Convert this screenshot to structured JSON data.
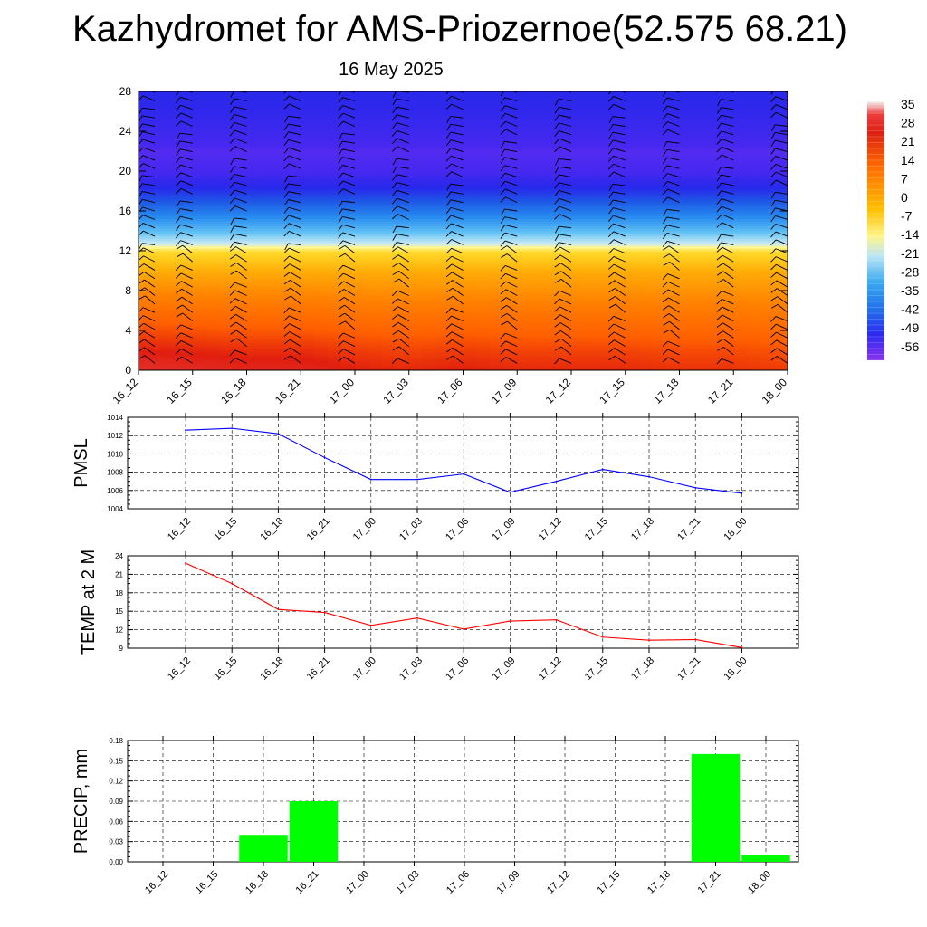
{
  "title": "Kazhydromet for AMS-Priozernoe(52.575 68.21)",
  "subtitle": "16 May 2025",
  "time_labels": [
    "16_12",
    "16_15",
    "16_18",
    "16_21",
    "17_00",
    "17_03",
    "17_06",
    "17_09",
    "17_12",
    "17_15",
    "17_18",
    "17_21",
    "18_00"
  ],
  "chart_data": [
    {
      "type": "heatmap",
      "title": "",
      "xlabel": "",
      "ylabel": "",
      "x": [
        "16_12",
        "16_15",
        "16_18",
        "16_21",
        "17_00",
        "17_03",
        "17_06",
        "17_09",
        "17_12",
        "17_15",
        "17_18",
        "17_21",
        "18_00"
      ],
      "y_ticks": [
        0,
        4,
        8,
        12,
        16,
        20,
        24,
        28
      ],
      "ylim": [
        0,
        28
      ],
      "y_tick_labels": [
        "0",
        "4",
        "8",
        "12",
        "16",
        "20",
        "24",
        "28"
      ],
      "colorbar": {
        "labels": [
          "35",
          "28",
          "21",
          "14",
          "7",
          "0",
          "-7",
          "-14",
          "-21",
          "-28",
          "-35",
          "-42",
          "-49",
          "-56"
        ],
        "range": [
          -60,
          36
        ]
      },
      "temperature_profile": {
        "levels_km": [
          0,
          2,
          4,
          6,
          8,
          10,
          12,
          12.5,
          13,
          14,
          16,
          18,
          20,
          22,
          24,
          26,
          28
        ],
        "values": [
          20,
          17,
          13,
          9,
          5,
          1,
          -8,
          -15,
          -18,
          -25,
          -35,
          -46,
          -55,
          -56,
          -53,
          -50,
          -48
        ]
      },
      "surface_warmth": [
        5,
        4,
        3,
        3,
        1,
        0,
        1,
        0,
        0,
        0,
        -1,
        -1,
        -2
      ],
      "wind_barbs": "present",
      "grid": false
    },
    {
      "type": "line",
      "ylabel": "PMSL",
      "x": [
        "16_12",
        "16_15",
        "16_18",
        "16_21",
        "17_00",
        "17_03",
        "17_06",
        "17_09",
        "17_12",
        "17_15",
        "17_18",
        "17_21",
        "18_00"
      ],
      "series": [
        {
          "values": [
            1012.6,
            1012.8,
            1012.2,
            1009.6,
            1007.2,
            1007.2,
            1007.8,
            1005.8,
            1007.0,
            1008.3,
            1007.5,
            1006.3,
            1005.7
          ],
          "color": "#0000ff"
        }
      ],
      "ylim": [
        1004,
        1014
      ],
      "yticks": [
        1004,
        1006,
        1008,
        1010,
        1012,
        1014
      ],
      "ytick_labels": [
        "1004",
        "1006",
        "1008",
        "1010",
        "1012",
        "1014"
      ],
      "grid": true
    },
    {
      "type": "line",
      "ylabel": "TEMP at 2 M",
      "x": [
        "16_12",
        "16_15",
        "16_18",
        "16_21",
        "17_00",
        "17_03",
        "17_06",
        "17_09",
        "17_12",
        "17_15",
        "17_18",
        "17_21",
        "18_00"
      ],
      "series": [
        {
          "values": [
            22.8,
            19.5,
            15.3,
            14.8,
            12.7,
            13.9,
            12.1,
            13.4,
            13.6,
            10.8,
            10.3,
            10.4,
            9.1
          ],
          "color": "#ff0000"
        }
      ],
      "ylim": [
        9,
        24
      ],
      "yticks": [
        9,
        12,
        15,
        18,
        21,
        24
      ],
      "ytick_labels": [
        "9",
        "12",
        "15",
        "18",
        "21",
        "24"
      ],
      "grid": true
    },
    {
      "type": "bar",
      "ylabel": "PRECIP, mm",
      "categories": [
        "16_12",
        "16_15",
        "16_18",
        "16_21",
        "17_00",
        "17_03",
        "17_06",
        "17_09",
        "17_12",
        "17_15",
        "17_18",
        "17_21",
        "18_00"
      ],
      "values": [
        0,
        0,
        0.04,
        0.09,
        0,
        0,
        0,
        0,
        0,
        0,
        0,
        0.16,
        0.01
      ],
      "color": "#00ff00",
      "ylim": [
        0,
        0.18
      ],
      "yticks": [
        0,
        0.03,
        0.06,
        0.09,
        0.12,
        0.15,
        0.18
      ],
      "ytick_labels": [
        "0.00",
        "0.03",
        "0.06",
        "0.09",
        "0.12",
        "0.15",
        "0.18"
      ],
      "grid": true
    }
  ]
}
